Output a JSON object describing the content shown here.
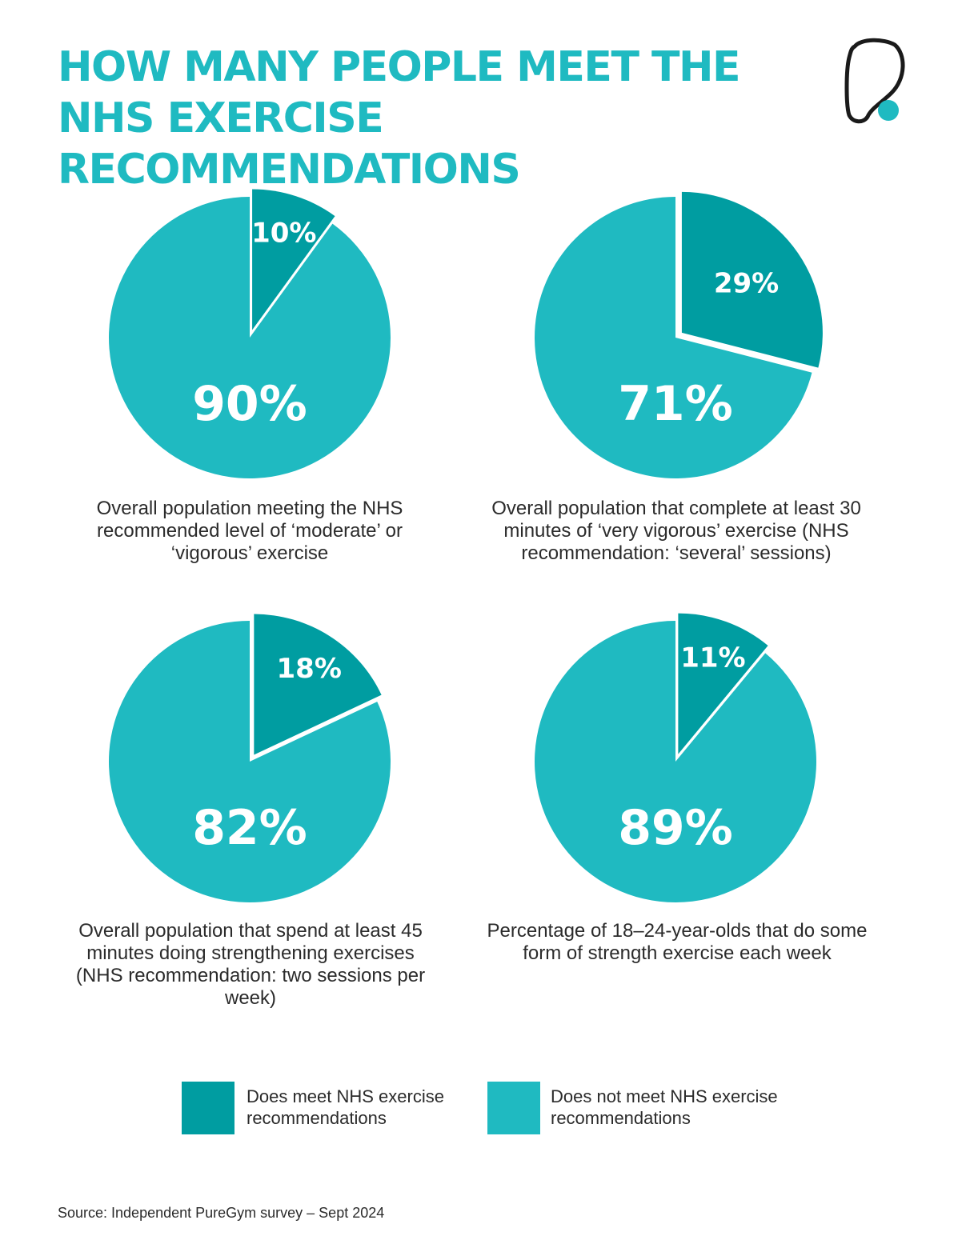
{
  "title": "HOW MANY PEOPLE MEET THE NHS EXERCISE RECOMMENDATIONS",
  "colors": {
    "meet": "#009da1",
    "not_meet": "#1fbac1",
    "title": "#1fbac1",
    "logo_stroke": "#1a1a1a",
    "logo_dot": "#1fbac1"
  },
  "logo_icon": "puregym-logo-icon",
  "chart_data": [
    {
      "type": "pie",
      "slices": [
        {
          "label": "Does meet NHS exercise recommendations",
          "value": 10,
          "display": "10%"
        },
        {
          "label": "Does not meet NHS exercise recommendations",
          "value": 90,
          "display": "90%"
        }
      ],
      "caption": "Overall population meeting the NHS recommended level of ‘moderate’ or ‘vigorous’ exercise"
    },
    {
      "type": "pie",
      "slices": [
        {
          "label": "Does meet NHS exercise recommendations",
          "value": 29,
          "display": "29%"
        },
        {
          "label": "Does not meet NHS exercise recommendations",
          "value": 71,
          "display": "71%"
        }
      ],
      "caption": "Overall population that complete at least 30 minutes of ‘very vigorous’ exercise (NHS recommendation: ‘several’ sessions)"
    },
    {
      "type": "pie",
      "slices": [
        {
          "label": "Does meet NHS exercise recommendations",
          "value": 18,
          "display": "18%"
        },
        {
          "label": "Does not meet NHS exercise recommendations",
          "value": 82,
          "display": "82%"
        }
      ],
      "caption": "Overall population that spend at least 45 minutes doing strengthening exercises (NHS recommendation: two sessions per week)"
    },
    {
      "type": "pie",
      "slices": [
        {
          "label": "Does meet NHS exercise recommendations",
          "value": 11,
          "display": "11%"
        },
        {
          "label": "Does not meet NHS exercise recommendations",
          "value": 89,
          "display": "89%"
        }
      ],
      "caption": "Percentage of 18–24-year-olds that do some form of strength exercise each week"
    }
  ],
  "legend": [
    {
      "label": "Does meet NHS exercise recommendations",
      "color": "#009da1"
    },
    {
      "label": "Does not meet NHS exercise recommendations",
      "color": "#1fbac1"
    }
  ],
  "source": "Source: Independent PureGym survey – Sept 2024"
}
